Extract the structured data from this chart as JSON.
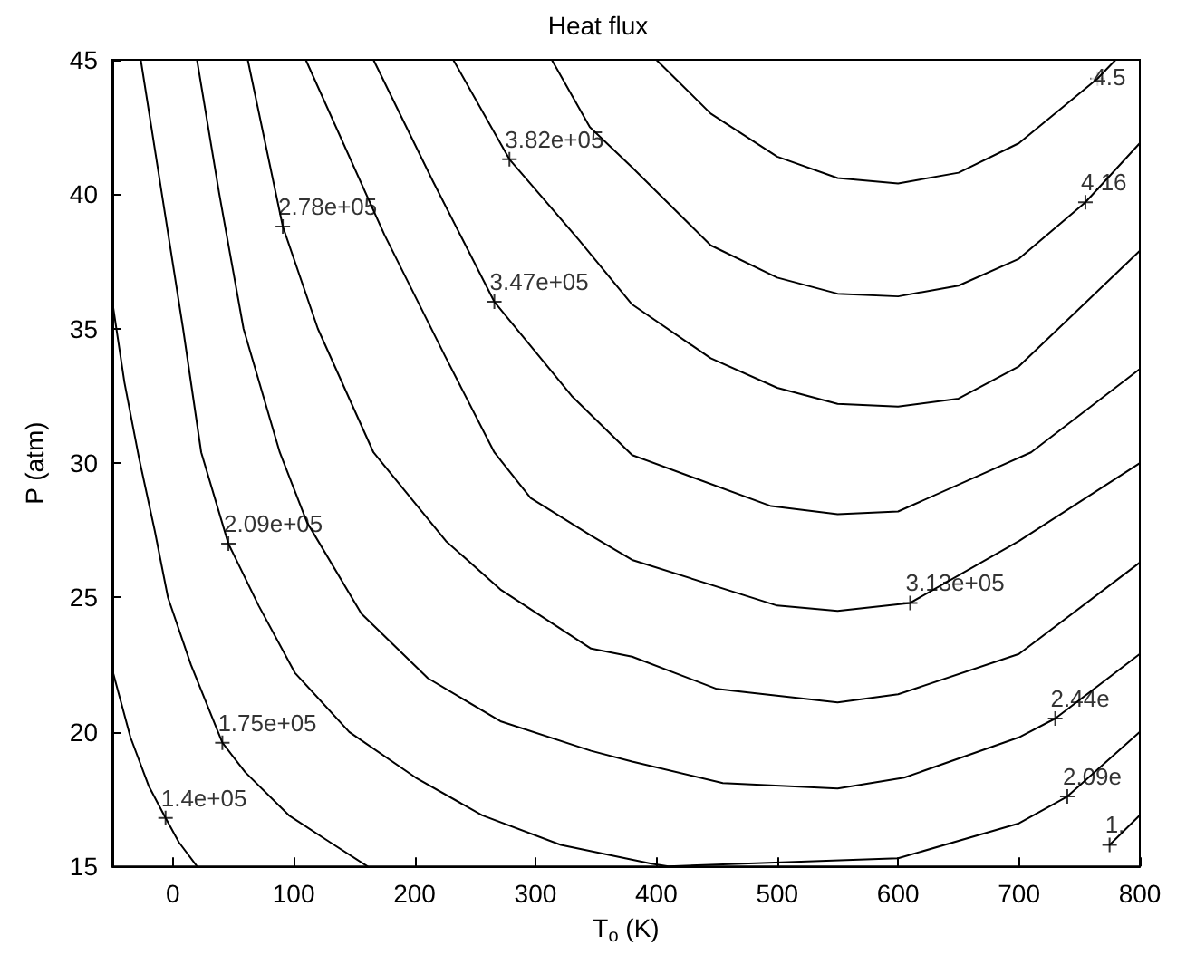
{
  "chart_data": {
    "type": "line",
    "title": "Heat flux",
    "xlabel": "T$_{o}$ (K)",
    "ylabel": "P (atm)",
    "xlim": [
      -50,
      800
    ],
    "ylim": [
      15,
      45
    ],
    "xticks": [
      0,
      100,
      200,
      300,
      400,
      500,
      600,
      700,
      800
    ],
    "yticks": [
      15,
      20,
      25,
      30,
      35,
      40,
      45
    ],
    "grid": false,
    "marker": "none",
    "line_style": "solid",
    "series": [
      {
        "color": "#000000",
        "x": [
          -50,
          -35,
          -20,
          -6,
          5,
          20,
          750,
          775,
          800
        ],
        "values": [
          22.3,
          19.8,
          18,
          16.8,
          15.9,
          15,
          null,
          15.8,
          16.9
        ]
      },
      {
        "color": "#000000",
        "x": [
          -50,
          -40,
          -28,
          -15,
          -4,
          15,
          41,
          60,
          96,
          130,
          161
        ],
        "values": [
          36,
          33,
          30.2,
          27.5,
          25,
          22.5,
          19.6,
          18.5,
          16.9,
          15.9,
          15
        ]
      },
      {
        "color": "#000000",
        "x": [
          -26.5,
          -9,
          8.5,
          23.5,
          46,
          71,
          101,
          146,
          201,
          256,
          321,
          396,
          410,
          600,
          700,
          740,
          800
        ],
        "values": [
          45,
          40,
          35,
          30.4,
          27,
          24.7,
          22.2,
          20,
          18.3,
          16.9,
          15.8,
          15.1,
          15,
          15.3,
          16.6,
          17.6,
          20
        ]
      },
      {
        "color": "#000000",
        "x": [
          20,
          38.5,
          58.5,
          88.5,
          111,
          156,
          211,
          271,
          346,
          380,
          455,
          550,
          605,
          700,
          730,
          800
        ],
        "values": [
          45,
          40,
          35,
          30.4,
          27.8,
          24.4,
          22,
          20.4,
          19.3,
          18.9,
          18.1,
          17.9,
          18.3,
          19.8,
          20.5,
          22.9
        ]
      },
      {
        "color": "#000000",
        "x": [
          62,
          91,
          120,
          166,
          226,
          271,
          346,
          380,
          450,
          550,
          600,
          700,
          800
        ],
        "values": [
          45,
          38.8,
          35,
          30.4,
          27.1,
          25.3,
          23.1,
          22.8,
          21.6,
          21.1,
          21.4,
          22.9,
          26.3
        ]
      },
      {
        "color": "#000000",
        "x": [
          110,
          175,
          225,
          266,
          296,
          346,
          380,
          500,
          550,
          610,
          700,
          800
        ],
        "values": [
          45,
          38.5,
          34,
          30.4,
          28.7,
          27.3,
          26.4,
          24.7,
          24.5,
          24.8,
          27.1,
          30
        ]
      },
      {
        "color": "#000000",
        "x": [
          166,
          215,
          266,
          330,
          380,
          495,
          550,
          600,
          710,
          800
        ],
        "values": [
          45,
          40.5,
          36,
          32.5,
          30.3,
          28.4,
          28.1,
          28.2,
          30.4,
          33.5
        ]
      },
      {
        "color": "#000000",
        "x": [
          232,
          278.5,
          336,
          380,
          445,
          500,
          550,
          600,
          650,
          700,
          800
        ],
        "values": [
          45,
          41.3,
          38.3,
          35.9,
          33.9,
          32.8,
          32.2,
          32.1,
          32.4,
          33.6,
          37.9
        ]
      },
      {
        "color": "#000000",
        "x": [
          313.5,
          345,
          380,
          445,
          500,
          550,
          600,
          650,
          700,
          755,
          800
        ],
        "values": [
          45,
          42.5,
          41,
          38.1,
          36.9,
          36.3,
          36.2,
          36.6,
          37.6,
          39.7,
          41.9
        ]
      },
      {
        "color": "#000000",
        "x": [
          400,
          445,
          500,
          550,
          600,
          650,
          700,
          765,
          780
        ],
        "values": [
          45,
          43,
          41.4,
          40.6,
          40.4,
          40.8,
          41.9,
          44.3,
          45
        ]
      }
    ],
    "annotations": [
      {
        "text": "1.4e+05",
        "x": -6,
        "y": 16.8
      },
      {
        "text": "1.75e+05",
        "x": 41,
        "y": 19.6
      },
      {
        "text": "2.09e+05",
        "x": 46,
        "y": 27
      },
      {
        "text": "2.78e+05",
        "x": 91,
        "y": 38.8
      },
      {
        "text": "3.47e+05",
        "x": 266,
        "y": 36
      },
      {
        "text": "3.82e+05",
        "x": 278.5,
        "y": 41.3
      },
      {
        "text": "3.13e+05",
        "x": 610,
        "y": 24.8
      },
      {
        "text": "2.44e",
        "x": 730,
        "y": 20.5
      },
      {
        "text": "2.09e",
        "x": 740,
        "y": 17.6
      },
      {
        "text": "1.",
        "x": 775,
        "y": 15.8
      },
      {
        "text": "4.16",
        "x": 755,
        "y": 39.7
      },
      {
        "text": "4.5",
        "x": 765,
        "y": 44.3
      }
    ]
  }
}
